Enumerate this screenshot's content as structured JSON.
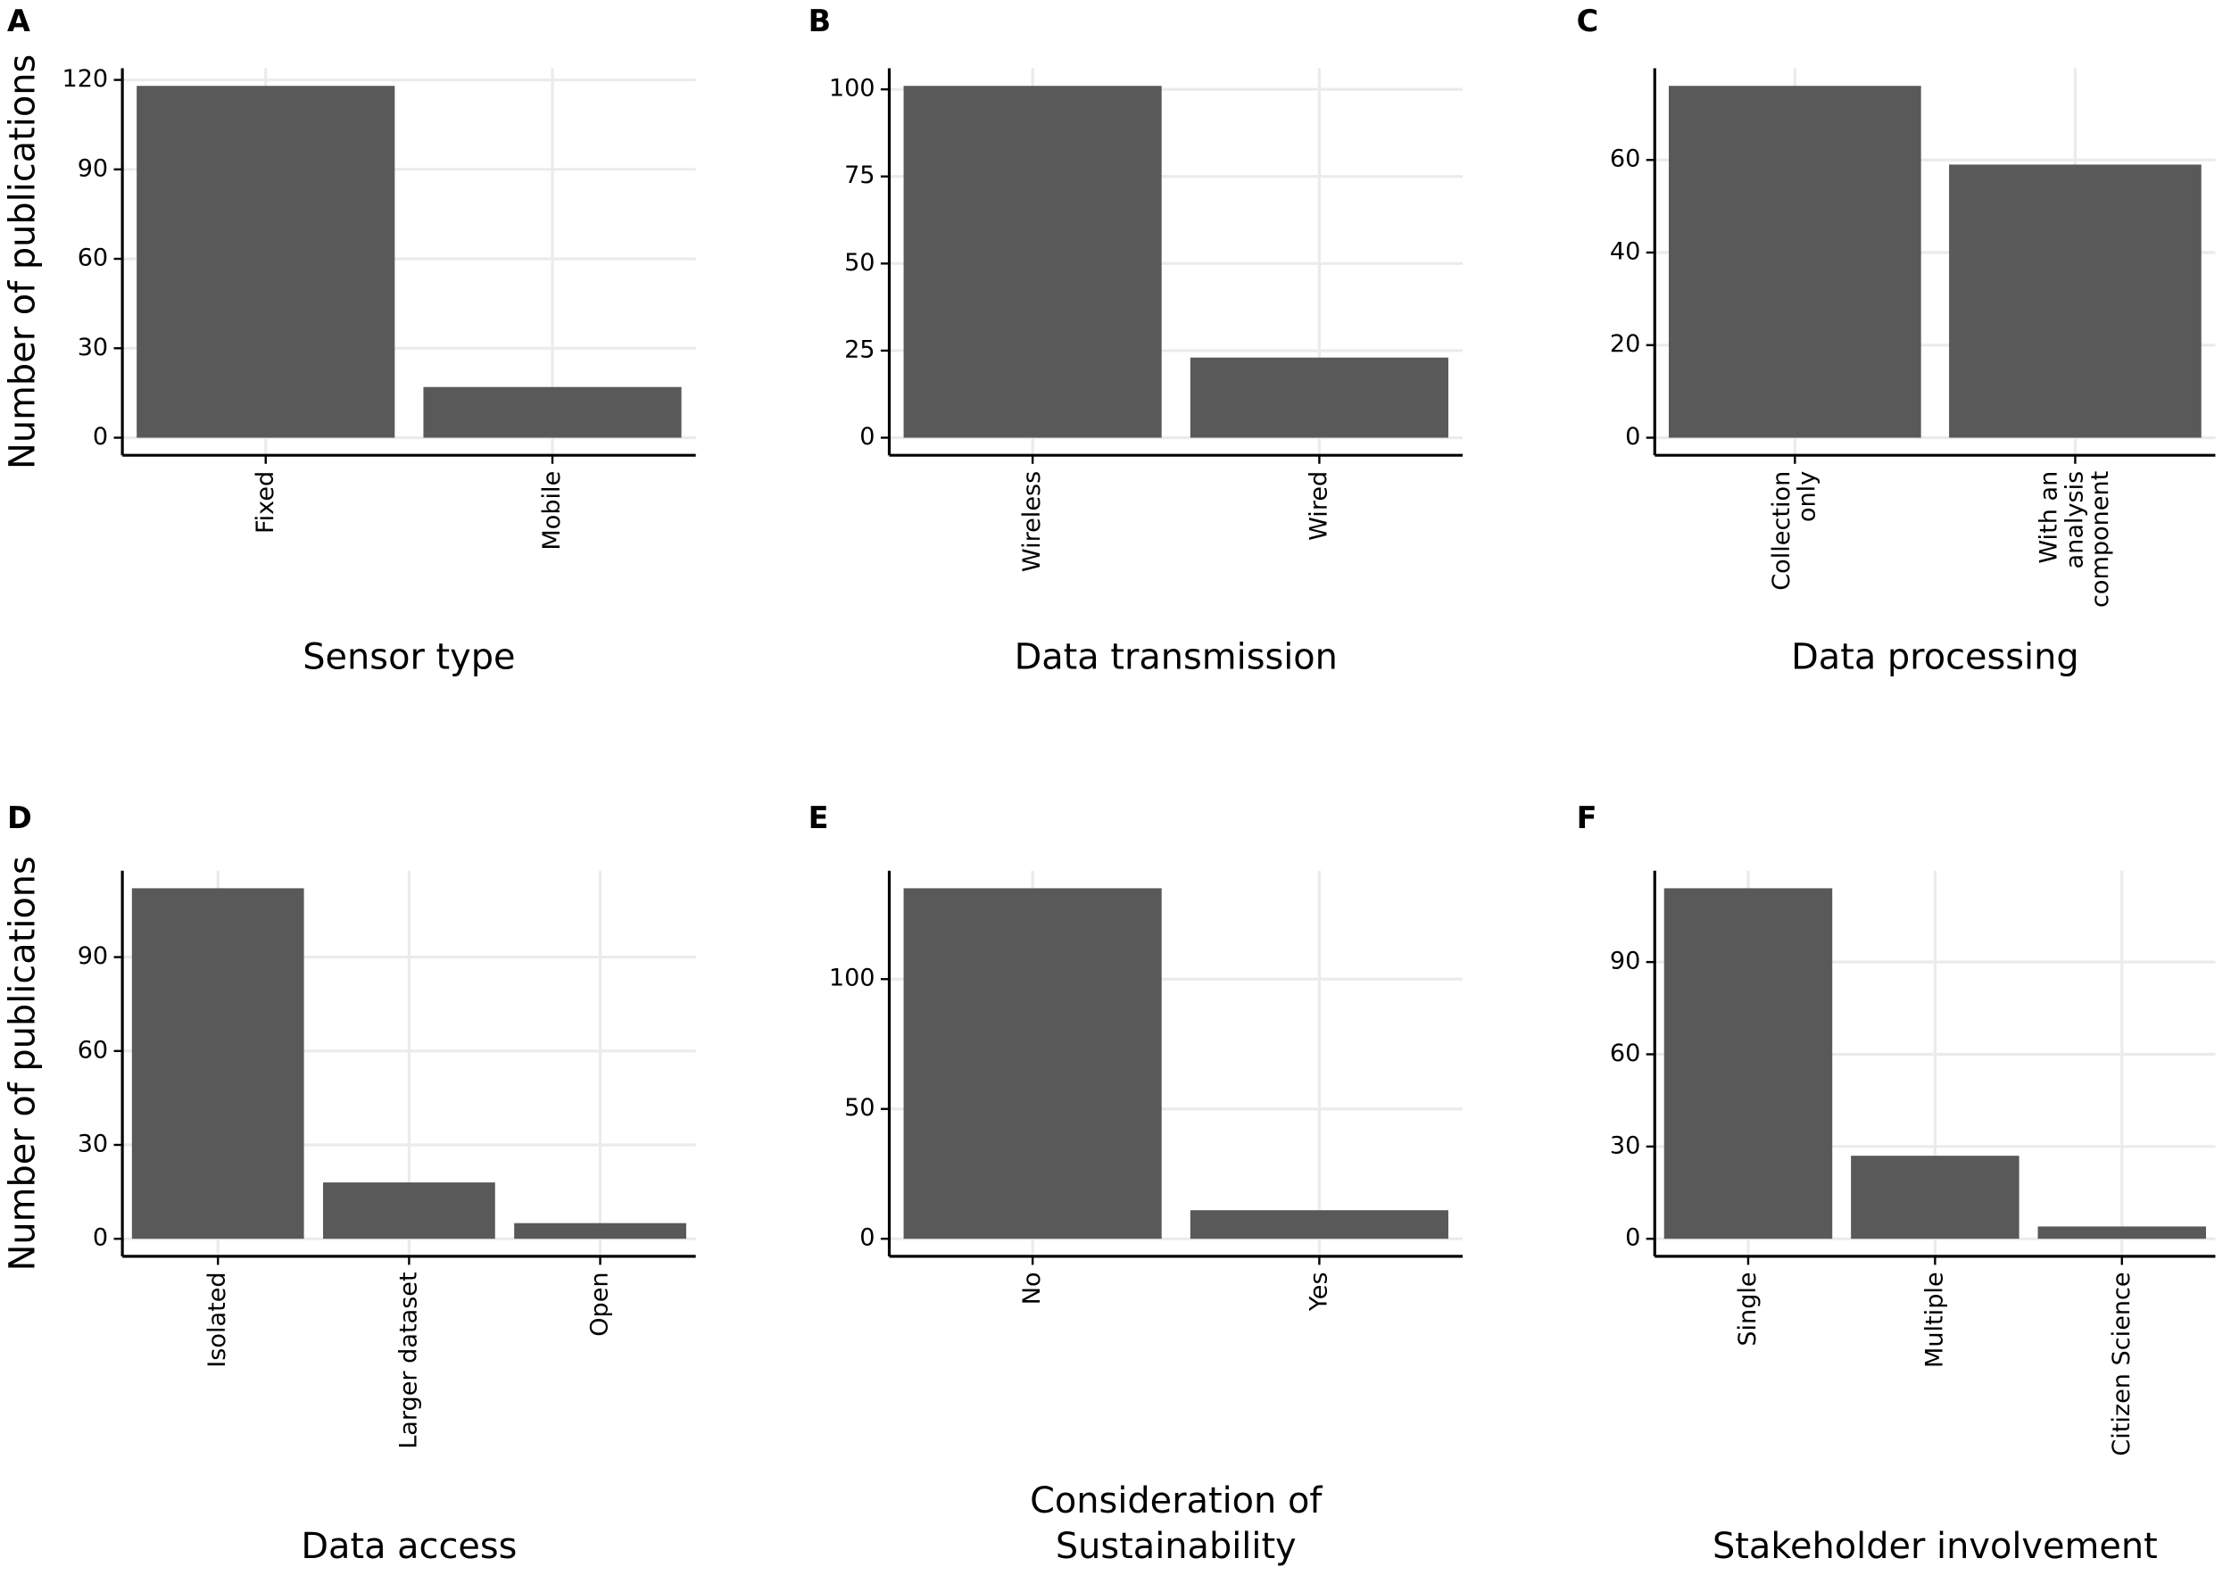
{
  "chart_data": [
    {
      "type": "bar",
      "label": "A",
      "xlabel": "Sensor type",
      "ylabel": "Number of publications",
      "categories": [
        "Fixed",
        "Mobile"
      ],
      "values": [
        118,
        17
      ],
      "color": "#595959",
      "ylim": [
        -5.9,
        123.9
      ],
      "yticks": [
        0,
        30,
        60,
        90,
        120
      ],
      "grid": true
    },
    {
      "type": "bar",
      "label": "B",
      "xlabel": "Data transmission",
      "categories": [
        "Wireless",
        "Wired"
      ],
      "values": [
        101,
        23
      ],
      "color": "#595959",
      "ylim": [
        -5.05,
        106.05
      ],
      "yticks": [
        0,
        25,
        50,
        75,
        100
      ],
      "grid": true
    },
    {
      "type": "bar",
      "label": "C",
      "xlabel": "Data processing",
      "categories": [
        "Collection\nonly",
        "With an\nanalysis\ncomponent"
      ],
      "values": [
        76,
        59
      ],
      "color": "#595959",
      "ylim": [
        -3.8,
        79.8
      ],
      "yticks": [
        0,
        20,
        40,
        60
      ],
      "grid": true
    },
    {
      "type": "bar",
      "label": "D",
      "xlabel": "Data access",
      "ylabel": "Number of publications",
      "categories": [
        "Isolated",
        "Larger dataset",
        "Open"
      ],
      "values": [
        112,
        18,
        5
      ],
      "color": "#595959",
      "ylim": [
        -5.6,
        117.6
      ],
      "yticks": [
        0,
        30,
        60,
        90
      ],
      "grid": true
    },
    {
      "type": "bar",
      "label": "E",
      "xlabel": "Consideration of\nSustainability",
      "categories": [
        "No",
        "Yes"
      ],
      "values": [
        135,
        11
      ],
      "color": "#595959",
      "ylim": [
        -6.75,
        141.75
      ],
      "yticks": [
        0,
        50,
        100
      ],
      "grid": true
    },
    {
      "type": "bar",
      "label": "F",
      "xlabel": "Stakeholder involvement",
      "categories": [
        "Single",
        "Multiple",
        "Citizen Science"
      ],
      "values": [
        114,
        27,
        4
      ],
      "color": "#595959",
      "ylim": [
        -5.7,
        119.7
      ],
      "yticks": [
        0,
        30,
        60,
        90
      ],
      "grid": true
    }
  ]
}
